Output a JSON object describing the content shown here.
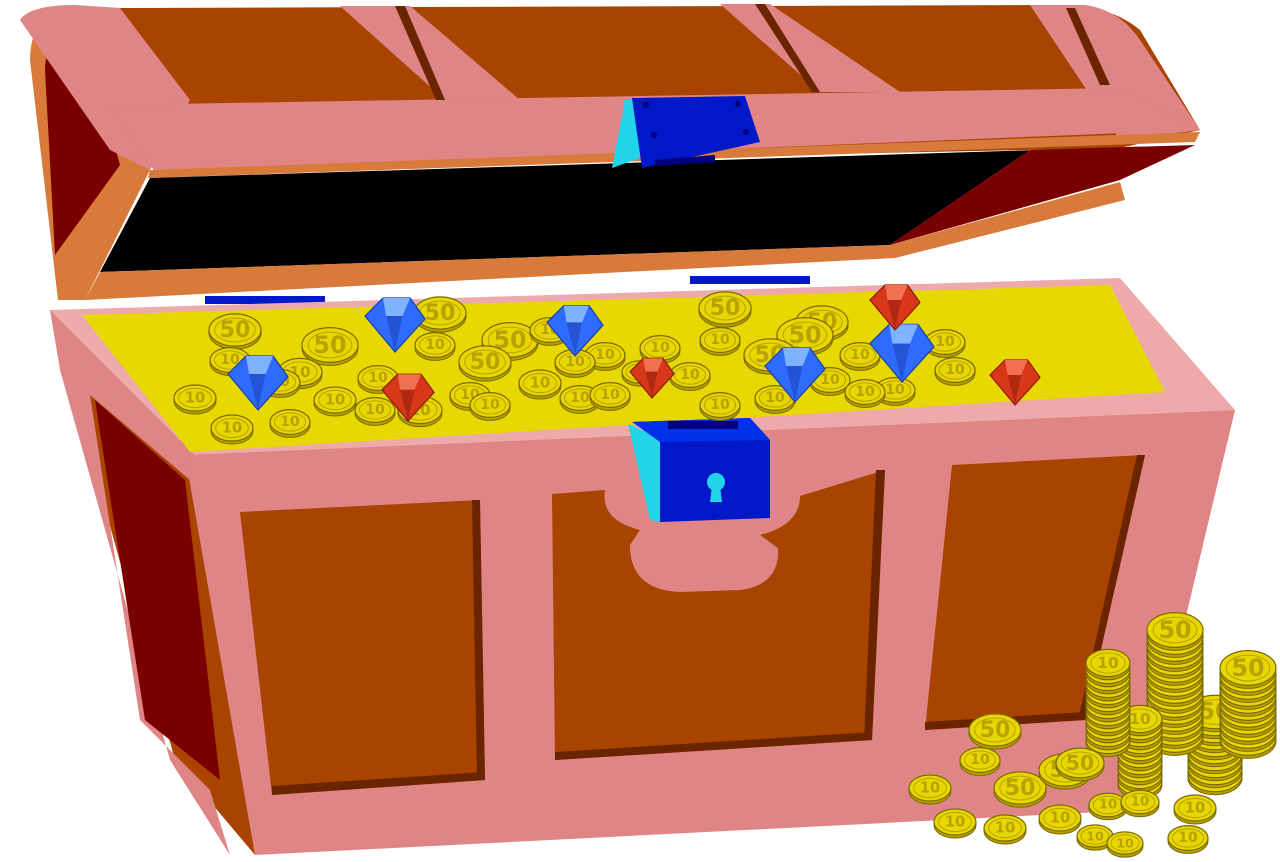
{
  "scene": {
    "subject": "treasure-chest",
    "colors": {
      "wood": "#a84400",
      "wood_dark": "#6a2400",
      "wood_interior": "#7a0000",
      "trim": "#df8585",
      "trim_light": "#eeaaaa",
      "trim_orange": "#d87a3a",
      "gold_bed": "#e6d800",
      "coin_fill": "#e8d600",
      "coin_stroke": "#7a6a00",
      "coin_text": "#b8a100",
      "gem_blue": "#2e6cff",
      "gem_blue_light": "#7fb2ff",
      "gem_red": "#d8381a",
      "gem_red_dark": "#8a1a0a",
      "lock_blue": "#0018c8",
      "lock_cyan": "#21d4e8",
      "lock_dark": "#000080",
      "interior_shadow": "#000000"
    },
    "coin_labels": {
      "small": "10",
      "large": "50"
    }
  }
}
